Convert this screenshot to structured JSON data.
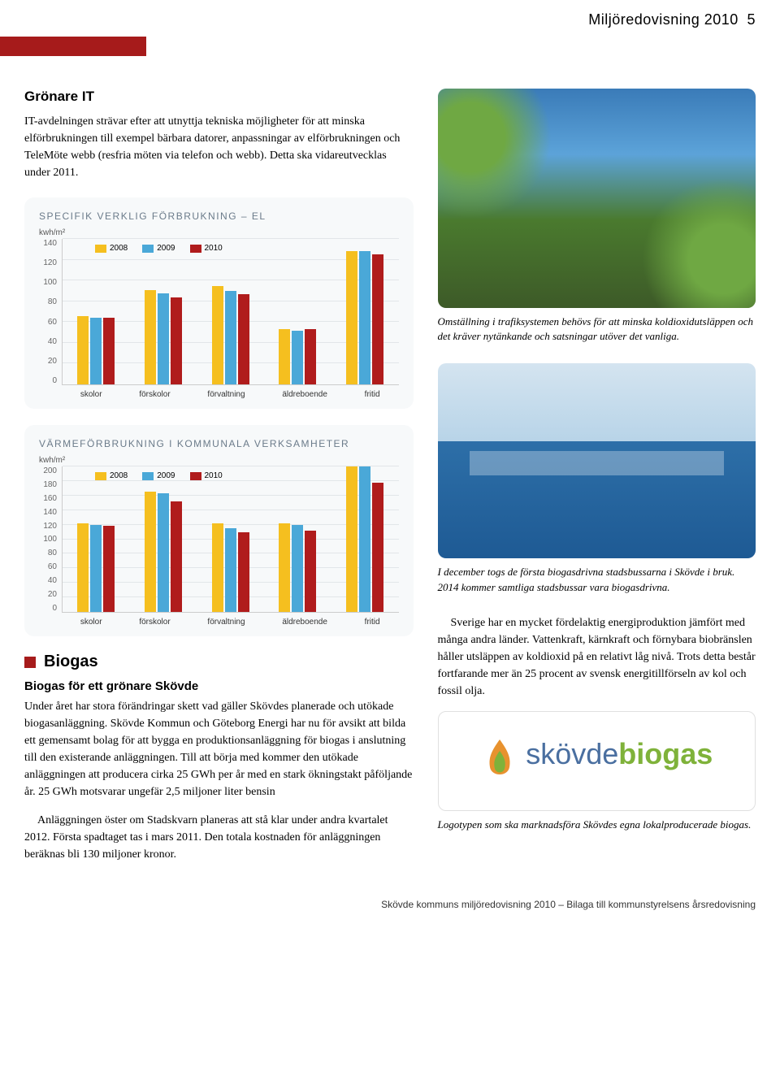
{
  "header": {
    "title": "Miljöredovisning 2010",
    "page": "5"
  },
  "gronare_it": {
    "title": "Grönare IT",
    "body": "IT-avdelningen strävar efter att utnyttja tekniska möjligheter för att minska elförbrukningen till exempel bärbara datorer, anpassningar av elförbrukningen och TeleMöte webb (resfria möten via telefon och webb). Detta ska vidareutvecklas under 2011."
  },
  "chart1": {
    "title": "SPECIFIK VERKLIG FÖRBRUKNING – EL",
    "unit": "kwh/m²",
    "ymax": 140,
    "ytick_step": 20,
    "categories": [
      "skolor",
      "förskolor",
      "förvaltning",
      "äldreboende",
      "fritid"
    ],
    "series": [
      {
        "name": "2008",
        "color": "#f5bf1f",
        "values": [
          66,
          91,
          95,
          53,
          128
        ]
      },
      {
        "name": "2009",
        "color": "#4aa8d8",
        "values": [
          64,
          88,
          90,
          52,
          128
        ]
      },
      {
        "name": "2010",
        "color": "#b01c1c",
        "values": [
          64,
          84,
          87,
          53,
          125
        ]
      }
    ],
    "background": "#f7f9fa"
  },
  "chart2": {
    "title": "VÄRMEFÖRBRUKNING I KOMMUNALA VERKSAMHETER",
    "unit": "kwh/m²",
    "ymax": 200,
    "ytick_step": 20,
    "categories": [
      "skolor",
      "förskolor",
      "förvaltning",
      "äldreboende",
      "fritid"
    ],
    "series": [
      {
        "name": "2008",
        "color": "#f5bf1f",
        "values": [
          122,
          165,
          122,
          122,
          205
        ]
      },
      {
        "name": "2009",
        "color": "#4aa8d8",
        "values": [
          120,
          163,
          115,
          120,
          200
        ]
      },
      {
        "name": "2010",
        "color": "#b01c1c",
        "values": [
          118,
          152,
          110,
          112,
          178
        ]
      }
    ],
    "background": "#f7f9fa"
  },
  "biogas": {
    "heading": "Biogas",
    "subtitle": "Biogas för ett grönare Skövde",
    "body": "Under året har stora förändringar skett vad gäller Skövdes planerade och utökade biogasanläggning. Skövde Kommun och Göteborg Energi har nu för avsikt att bilda ett gemensamt bolag för att bygga en produktionsanläggning för biogas i anslutning till den existerande anläggningen. Till att börja med kommer den utökade anläggningen att producera cirka 25 GWh per år med en stark ökningstakt påföljande år. 25 GWh motsvarar ungefär 2,5 miljoner liter bensin",
    "body2": "Anläggningen öster om Stadskvarn planeras att stå klar under andra kvartalet 2012. Första spadtaget tas i mars 2011. Den totala kostnaden för anläggningen beräknas bli 130 miljoner kronor."
  },
  "photo1_caption": "Omställning i trafiksystemen behövs för att minska koldioxidutsläppen och det kräver nytänkande och satsningar utöver det vanliga.",
  "photo2_caption": "I december togs de första biogasdrivna stadsbussarna i Skövde i bruk. 2014 kommer samtliga stadsbussar vara biogasdrivna.",
  "right_body": "Sverige har en mycket fördelaktig energiproduktion jämfört med många andra länder. Vattenkraft, kärnkraft och förnybara biobränslen håller utsläppen av koldioxid på en relativt låg nivå. Trots detta består fortfarande mer än 25 procent av svensk energitillförseln av kol och fossil olja.",
  "logo": {
    "text1": "skövde",
    "text2": "biogas",
    "color1": "#4a6fa0",
    "color2": "#7fb23a",
    "flame_outer": "#e8922e",
    "flame_inner": "#7fb23a"
  },
  "logo_caption": "Logotypen som ska marknadsföra Skövdes egna lokalproducerade biogas.",
  "footer": "Skövde kommuns miljöredovisning 2010 – Bilaga till kommunstyrelsens årsredovisning"
}
